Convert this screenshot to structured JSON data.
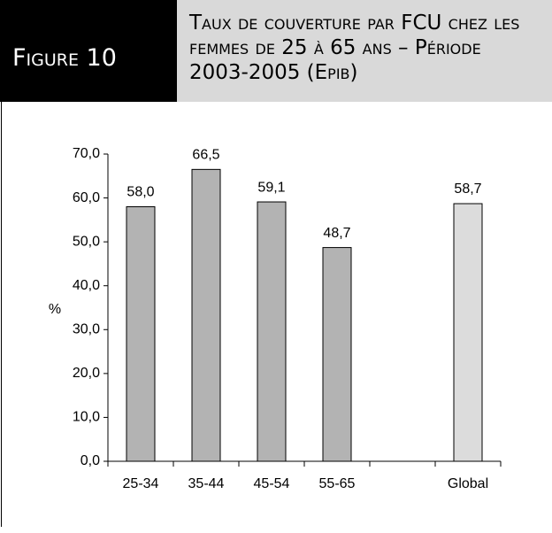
{
  "figure_label": "Figure 10",
  "chart_data": {
    "type": "bar",
    "title": "Taux de couverture par FCU chez les femmes de 25 à 65 ans – Période 2003-2005 (Epib)",
    "y_label": "%",
    "categories": [
      "25-34",
      "35-44",
      "45-54",
      "55-65",
      null,
      "Global"
    ],
    "values": [
      58.0,
      66.5,
      59.1,
      48.7,
      null,
      58.7
    ],
    "value_labels": [
      "58,0",
      "66,5",
      "59,1",
      "48,7",
      null,
      "58,7"
    ],
    "colors": [
      "#b3b3b3",
      "#b3b3b3",
      "#b3b3b3",
      "#b3b3b3",
      null,
      "#dcdcdc"
    ],
    "ylim": [
      0,
      70
    ],
    "yticks": [
      {
        "value": 0,
        "label": "0,0"
      },
      {
        "value": 10,
        "label": "10,0"
      },
      {
        "value": 20,
        "label": "20,0"
      },
      {
        "value": 30,
        "label": "30,0"
      },
      {
        "value": 40,
        "label": "40,0"
      },
      {
        "value": 50,
        "label": "50,0"
      },
      {
        "value": 60,
        "label": "60,0"
      },
      {
        "value": 70,
        "label": "70,0"
      }
    ]
  }
}
